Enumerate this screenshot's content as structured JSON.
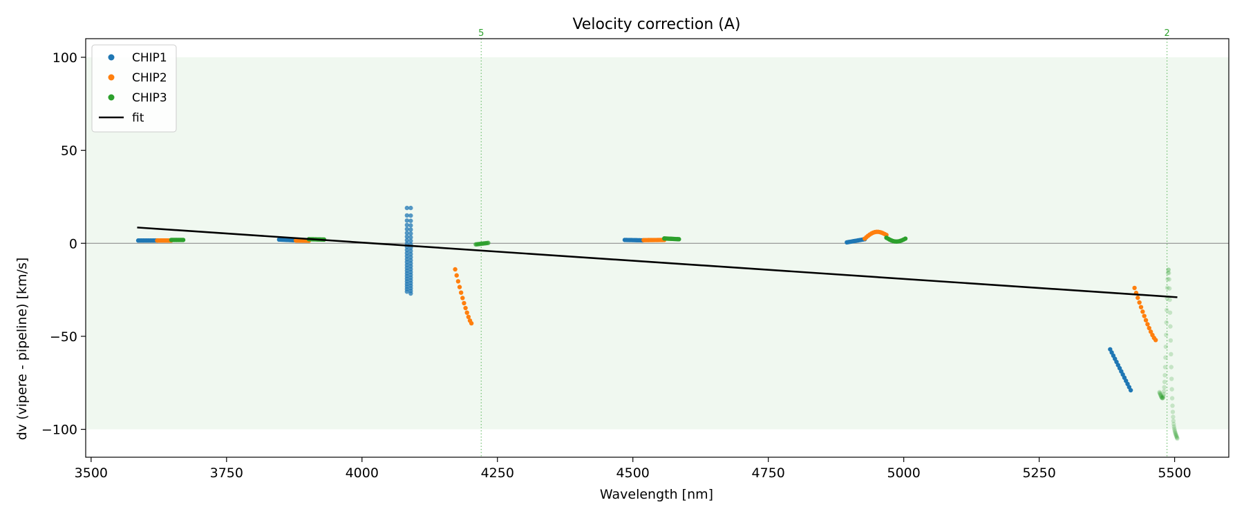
{
  "chart_data": {
    "type": "scatter",
    "title": "Velocity correction (A)",
    "xlabel": "Wavelength [nm]",
    "ylabel": "dv (vipere - pipeline) [km/s]",
    "xlim": [
      3490,
      5600
    ],
    "ylim": [
      -115,
      110
    ],
    "xticks": [
      3500,
      3750,
      4000,
      4250,
      4500,
      4750,
      5000,
      5250,
      5500
    ],
    "yticks": [
      -100,
      -50,
      0,
      50,
      100
    ],
    "shaded_band": {
      "y0": -100,
      "y1": 100,
      "color": "#2ca02c"
    },
    "zero_line": 0,
    "legend_position": "upper-left",
    "colors": {
      "CHIP1": "#1f77b4",
      "CHIP2": "#ff7f0e",
      "CHIP3": "#2ca02c",
      "fit": "#000000"
    },
    "series": [
      {
        "name": "CHIP1",
        "segments": [
          {
            "x0": 3587,
            "x1": 3622,
            "y0": 1.5,
            "y1": 1.5,
            "alpha": 1.0
          },
          {
            "x0": 3847,
            "x1": 3878,
            "y0": 2.0,
            "y1": 1.6,
            "alpha": 1.0
          },
          {
            "x0": 4083,
            "x1": 4083,
            "y0": 19,
            "y1": -26,
            "alpha": 0.75,
            "kind": "column"
          },
          {
            "x0": 4090,
            "x1": 4090,
            "y0": 19,
            "y1": -27,
            "alpha": 0.75,
            "kind": "column"
          },
          {
            "x0": 4485,
            "x1": 4518,
            "y0": 1.8,
            "y1": 1.6,
            "alpha": 1.0
          },
          {
            "x0": 4895,
            "x1": 4928,
            "y0": 0.5,
            "y1": 2.2,
            "alpha": 1.0
          },
          {
            "x0": 5381,
            "x1": 5419,
            "y0": -57,
            "y1": -79,
            "alpha": 1.0
          }
        ]
      },
      {
        "name": "CHIP2",
        "segments": [
          {
            "x0": 3622,
            "x1": 3648,
            "y0": 1.5,
            "y1": 1.5,
            "alpha": 1.0
          },
          {
            "x0": 3878,
            "x1": 3902,
            "y0": 1.5,
            "y1": 1.4,
            "alpha": 1.0
          },
          {
            "x0": 4172,
            "x1": 4202,
            "y0": -14,
            "y1": -43,
            "alpha": 1.0,
            "kind": "curve"
          },
          {
            "x0": 4520,
            "x1": 4558,
            "y0": 1.7,
            "y1": 1.8,
            "alpha": 1.0
          },
          {
            "x0": 4928,
            "x1": 4968,
            "y0": 2.5,
            "y1": 4.5,
            "alpha": 1.0,
            "kind": "hump",
            "peak": 6.5
          },
          {
            "x0": 5426,
            "x1": 5465,
            "y0": -24,
            "y1": -52,
            "alpha": 1.0,
            "kind": "curve"
          }
        ]
      },
      {
        "name": "CHIP3",
        "segments": [
          {
            "x0": 3648,
            "x1": 3670,
            "y0": 1.8,
            "y1": 1.8,
            "alpha": 1.0
          },
          {
            "x0": 3902,
            "x1": 3930,
            "y0": 2.2,
            "y1": 2.0,
            "alpha": 1.0
          },
          {
            "x0": 4210,
            "x1": 4233,
            "y0": -0.6,
            "y1": 0.2,
            "alpha": 0.7
          },
          {
            "x0": 4558,
            "x1": 4585,
            "y0": 2.6,
            "y1": 2.2,
            "alpha": 1.0
          },
          {
            "x0": 4968,
            "x1": 5003,
            "y0": 3.0,
            "y1": 2.5,
            "alpha": 1.0,
            "kind": "dip",
            "trough": 1.0
          },
          {
            "x0": 5472,
            "x1": 5505,
            "y0": -80,
            "y1": -105,
            "alpha": 0.22,
            "kind": "spike",
            "peak": -14
          }
        ]
      }
    ],
    "fit": {
      "name": "fit",
      "x": [
        3585,
        5505
      ],
      "y": [
        8.5,
        -29
      ]
    },
    "vlines": [
      {
        "x": 4220,
        "label": "5",
        "color": "#2ca02c"
      },
      {
        "x": 5486,
        "label": "2",
        "color": "#2ca02c"
      }
    ],
    "legend": [
      "CHIP1",
      "CHIP2",
      "CHIP3",
      "fit"
    ]
  }
}
